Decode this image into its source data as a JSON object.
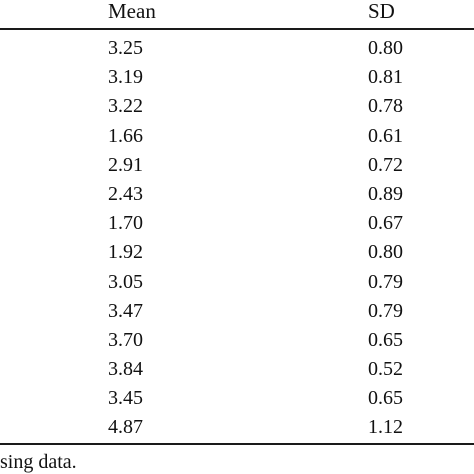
{
  "table": {
    "headers": {
      "mean": "Mean",
      "sd": "SD"
    },
    "rows": [
      {
        "mean": "3.25",
        "sd": "0.80"
      },
      {
        "mean": "3.19",
        "sd": "0.81"
      },
      {
        "mean": "3.22",
        "sd": "0.78"
      },
      {
        "mean": "1.66",
        "sd": "0.61"
      },
      {
        "mean": "2.91",
        "sd": "0.72"
      },
      {
        "mean": "2.43",
        "sd": "0.89"
      },
      {
        "mean": "1.70",
        "sd": "0.67"
      },
      {
        "mean": "1.92",
        "sd": "0.80"
      },
      {
        "mean": "3.05",
        "sd": "0.79"
      },
      {
        "mean": "3.47",
        "sd": "0.79"
      },
      {
        "mean": "3.70",
        "sd": "0.65"
      },
      {
        "mean": "3.84",
        "sd": "0.52"
      },
      {
        "mean": "3.45",
        "sd": "0.65"
      },
      {
        "mean": "4.87",
        "sd": "1.12"
      }
    ]
  },
  "footnote": "sing data."
}
